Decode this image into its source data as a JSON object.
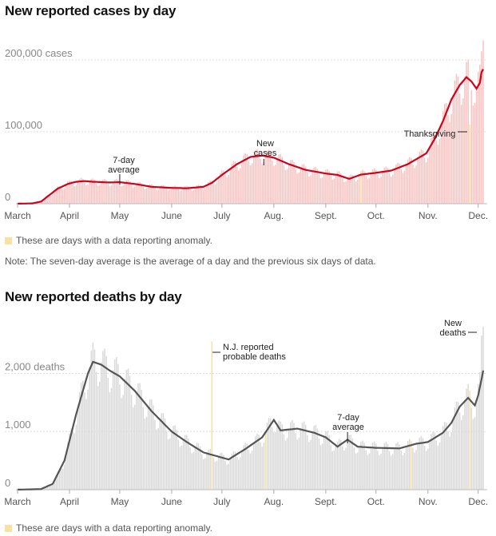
{
  "charts_text": {
    "cases_title": "New reported cases by day",
    "deaths_title": "New reported deaths by day",
    "anomaly_legend": "These are days with a data reporting anomaly.",
    "note": "Note: The seven-day average is the average of a day and the previous six days of data."
  },
  "colors": {
    "cases_bar": "#f7c4c2",
    "cases_line": "#d0021b",
    "deaths_bar": "#d9d9d9",
    "deaths_line": "#555555",
    "anomaly": "#f8e1a1",
    "grid": "#dddddd"
  },
  "chart_data": [
    {
      "type": "bar",
      "title": "New reported cases by day",
      "x_ticks": [
        "March",
        "April",
        "May",
        "June",
        "July",
        "Aug.",
        "Sept.",
        "Oct.",
        "Nov.",
        "Dec."
      ],
      "y_ticks": [
        "200,000 cases",
        "100,000",
        "0"
      ],
      "ylim": [
        0,
        230000
      ],
      "grid": true,
      "x_range": [
        "Mar 1",
        "Dec 4"
      ],
      "series": [
        {
          "name": "7-day average",
          "points": [
            {
              "x": "Mar 1",
              "y": 0
            },
            {
              "x": "Mar 10",
              "y": 500
            },
            {
              "x": "Mar 15",
              "y": 3000
            },
            {
              "x": "Mar 20",
              "y": 12000
            },
            {
              "x": "Mar 25",
              "y": 21000
            },
            {
              "x": "Mar 31",
              "y": 27500
            },
            {
              "x": "Apr 5",
              "y": 30500
            },
            {
              "x": "Apr 10",
              "y": 31500
            },
            {
              "x": "Apr 15",
              "y": 30500
            },
            {
              "x": "Apr 25",
              "y": 29500
            },
            {
              "x": "May 1",
              "y": 30000
            },
            {
              "x": "May 10",
              "y": 27500
            },
            {
              "x": "May 20",
              "y": 23500
            },
            {
              "x": "Jun 1",
              "y": 22000
            },
            {
              "x": "Jun 10",
              "y": 21500
            },
            {
              "x": "Jun 20",
              "y": 23500
            },
            {
              "x": "Jun 25",
              "y": 29000
            },
            {
              "x": "Jul 1",
              "y": 40000
            },
            {
              "x": "Jul 10",
              "y": 55000
            },
            {
              "x": "Jul 18",
              "y": 65000
            },
            {
              "x": "Jul 25",
              "y": 67000
            },
            {
              "x": "Aug 1",
              "y": 64000
            },
            {
              "x": "Aug 10",
              "y": 55000
            },
            {
              "x": "Aug 20",
              "y": 47000
            },
            {
              "x": "Sep 1",
              "y": 42000
            },
            {
              "x": "Sep 8",
              "y": 40000
            },
            {
              "x": "Sep 15",
              "y": 34500
            },
            {
              "x": "Sep 22",
              "y": 40500
            },
            {
              "x": "Oct 1",
              "y": 43000
            },
            {
              "x": "Oct 10",
              "y": 46000
            },
            {
              "x": "Oct 20",
              "y": 55000
            },
            {
              "x": "Oct 31",
              "y": 70000
            },
            {
              "x": "Nov 5",
              "y": 90000
            },
            {
              "x": "Nov 10",
              "y": 115000
            },
            {
              "x": "Nov 15",
              "y": 145000
            },
            {
              "x": "Nov 20",
              "y": 165000
            },
            {
              "x": "Nov 24",
              "y": 176000
            },
            {
              "x": "Nov 27",
              "y": 170000
            },
            {
              "x": "Nov 30",
              "y": 160000
            },
            {
              "x": "Dec 2",
              "y": 168000
            },
            {
              "x": "Dec 3",
              "y": 183000
            },
            {
              "x": "Dec 4",
              "y": 187000
            }
          ]
        }
      ],
      "bar_peak_labels": {
        "max_daily": 227000
      },
      "anomaly_days": [
        "Sep 22",
        "Nov 26"
      ],
      "annotations": [
        {
          "lines": [
            "7-day",
            "average"
          ],
          "at": "May 1"
        },
        {
          "lines": [
            "New",
            "cases"
          ],
          "at": "Jul 26"
        },
        {
          "lines": [
            "Thanksgiving"
          ],
          "at": "Nov 26"
        }
      ]
    },
    {
      "type": "bar",
      "title": "New reported deaths by day",
      "x_ticks": [
        "March",
        "April",
        "May",
        "June",
        "July",
        "Aug.",
        "Sept.",
        "Oct.",
        "Nov.",
        "Dec."
      ],
      "y_ticks": [
        "2,000 deaths",
        "1,000",
        "0"
      ],
      "ylim": [
        0,
        2900
      ],
      "grid": true,
      "x_range": [
        "Mar 1",
        "Dec 4"
      ],
      "series": [
        {
          "name": "7-day average",
          "points": [
            {
              "x": "Mar 1",
              "y": 0
            },
            {
              "x": "Mar 15",
              "y": 10
            },
            {
              "x": "Mar 22",
              "y": 100
            },
            {
              "x": "Mar 29",
              "y": 500
            },
            {
              "x": "Apr 5",
              "y": 1300
            },
            {
              "x": "Apr 12",
              "y": 2000
            },
            {
              "x": "Apr 15",
              "y": 2200
            },
            {
              "x": "Apr 20",
              "y": 2150
            },
            {
              "x": "Apr 25",
              "y": 2050
            },
            {
              "x": "May 1",
              "y": 1950
            },
            {
              "x": "May 10",
              "y": 1700
            },
            {
              "x": "May 20",
              "y": 1350
            },
            {
              "x": "Jun 1",
              "y": 1000
            },
            {
              "x": "Jun 10",
              "y": 820
            },
            {
              "x": "Jun 20",
              "y": 640
            },
            {
              "x": "Jun 30",
              "y": 560
            },
            {
              "x": "Jul 5",
              "y": 520
            },
            {
              "x": "Jul 15",
              "y": 700
            },
            {
              "x": "Jul 25",
              "y": 900
            },
            {
              "x": "Aug 1",
              "y": 1200
            },
            {
              "x": "Aug 5",
              "y": 1020
            },
            {
              "x": "Aug 15",
              "y": 1050
            },
            {
              "x": "Aug 25",
              "y": 980
            },
            {
              "x": "Sep 1",
              "y": 900
            },
            {
              "x": "Sep 8",
              "y": 740
            },
            {
              "x": "Sep 14",
              "y": 860
            },
            {
              "x": "Sep 20",
              "y": 740
            },
            {
              "x": "Oct 1",
              "y": 720
            },
            {
              "x": "Oct 15",
              "y": 710
            },
            {
              "x": "Oct 25",
              "y": 790
            },
            {
              "x": "Nov 1",
              "y": 820
            },
            {
              "x": "Nov 10",
              "y": 980
            },
            {
              "x": "Nov 15",
              "y": 1150
            },
            {
              "x": "Nov 20",
              "y": 1430
            },
            {
              "x": "Nov 25",
              "y": 1580
            },
            {
              "x": "Nov 29",
              "y": 1450
            },
            {
              "x": "Dec 1",
              "y": 1620
            },
            {
              "x": "Dec 3",
              "y": 1900
            },
            {
              "x": "Dec 4",
              "y": 2050
            }
          ]
        }
      ],
      "anomaly_days": [
        "Jun 25",
        "Jul 27",
        "Oct 22",
        "Nov 26"
      ],
      "njr_spike_day": "Jun 25",
      "annotations": [
        {
          "lines": [
            "N.J. reported",
            "probable deaths"
          ],
          "at": "Jun 25"
        },
        {
          "lines": [
            "7-day",
            "average"
          ],
          "at": "Sep 14"
        },
        {
          "lines": [
            "New",
            "deaths"
          ],
          "at": "Dec 2"
        }
      ]
    }
  ]
}
